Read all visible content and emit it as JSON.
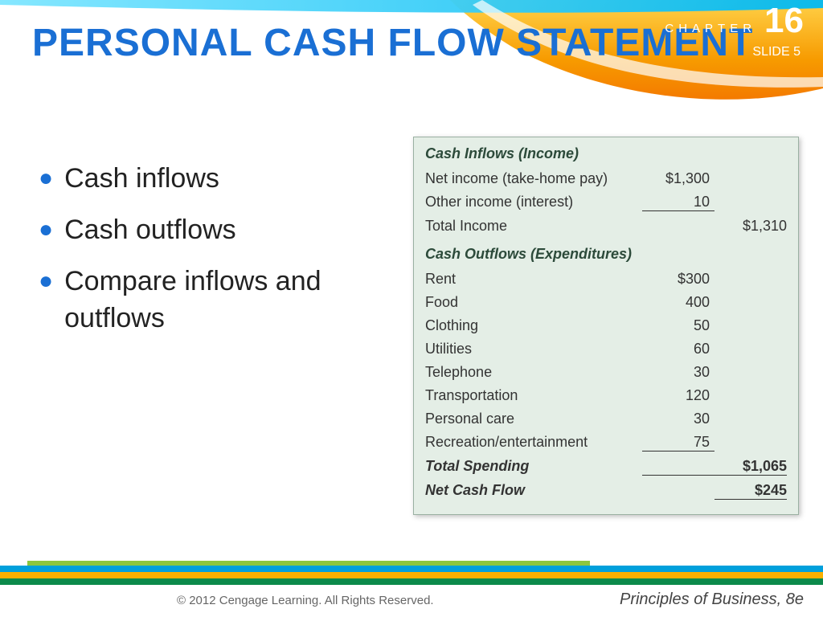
{
  "header": {
    "title": "PERSONAL CASH FLOW STATEMENT",
    "chapter_label": "CHAPTER",
    "chapter_number": "16",
    "slide_label": "SLIDE 5",
    "colors": {
      "title_color": "#1a6fd4",
      "swoosh_orange_dark": "#f47a00",
      "swoosh_orange_light": "#ffc20e",
      "swoosh_cyan": "#00b9f2"
    }
  },
  "bullets": {
    "items": [
      "Cash inflows",
      "Cash outflows",
      "Compare inflows and outflows"
    ],
    "bullet_color": "#1a6fd4",
    "text_color": "#222222",
    "fontsize": 34
  },
  "table": {
    "background": "#e4eee6",
    "border_color": "#9ab0a2",
    "text_color": "#333333",
    "header_color": "#2c4a3a",
    "fontsize": 18,
    "inflows_header": "Cash Inflows (Income)",
    "inflows": [
      {
        "label": "Net income (take-home pay)",
        "col1": "$1,300"
      },
      {
        "label": "Other income (interest)",
        "col1": "10",
        "underline": true
      }
    ],
    "total_income": {
      "label": "Total Income",
      "col2": "$1,310"
    },
    "outflows_header": "Cash Outflows (Expenditures)",
    "outflows": [
      {
        "label": "Rent",
        "col1": "$300"
      },
      {
        "label": "Food",
        "col1": "400"
      },
      {
        "label": "Clothing",
        "col1": "50"
      },
      {
        "label": "Utilities",
        "col1": "60"
      },
      {
        "label": "Telephone",
        "col1": "30"
      },
      {
        "label": "Transportation",
        "col1": "120"
      },
      {
        "label": "Personal care",
        "col1": "30"
      },
      {
        "label": "Recreation/entertainment",
        "col1": "75",
        "underline": true
      }
    ],
    "total_spending": {
      "label": "Total Spending",
      "col2": "$1,065",
      "underline": true
    },
    "net_cash_flow": {
      "label": "Net Cash Flow",
      "col2": "$245"
    }
  },
  "footer": {
    "copyright": "© 2012 Cengage Learning. All Rights Reserved.",
    "book": "Principles of Business, 8e",
    "bar_colors": [
      "#0c8a4b",
      "#f9b000",
      "#00a0dc",
      "#7ab800"
    ]
  }
}
